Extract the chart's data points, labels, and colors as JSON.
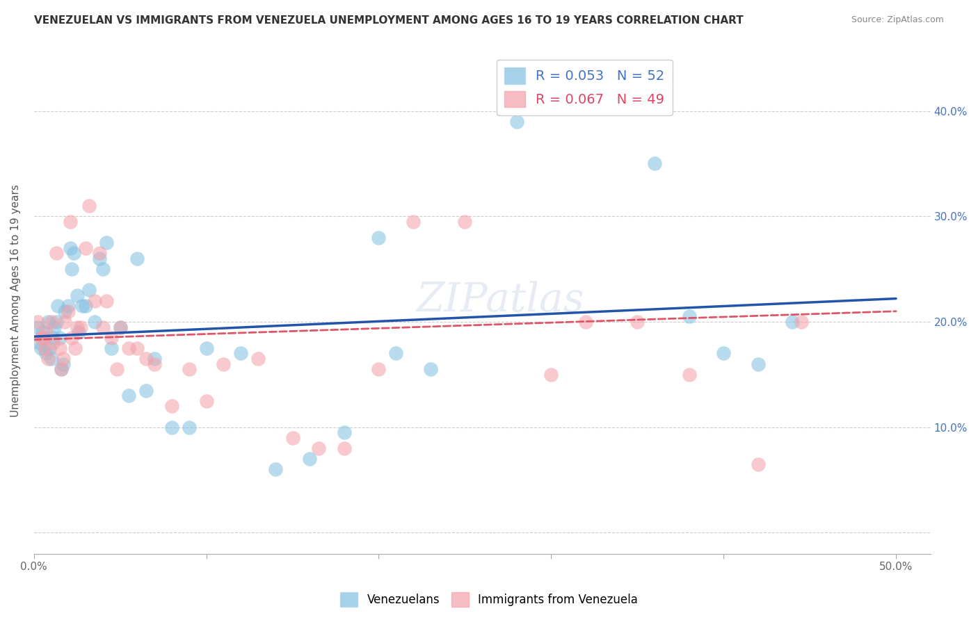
{
  "title": "VENEZUELAN VS IMMIGRANTS FROM VENEZUELA UNEMPLOYMENT AMONG AGES 16 TO 19 YEARS CORRELATION CHART",
  "source": "Source: ZipAtlas.com",
  "ylabel": "Unemployment Among Ages 16 to 19 years",
  "xlim": [
    0.0,
    0.52
  ],
  "ylim": [
    -0.02,
    0.46
  ],
  "yticks": [
    0.0,
    0.1,
    0.2,
    0.3,
    0.4
  ],
  "xtick_positions": [
    0.0,
    0.1,
    0.2,
    0.3,
    0.4,
    0.5
  ],
  "legend_label1": "Venezuelans",
  "legend_label2": "Immigrants from Venezuela",
  "R1": 0.053,
  "N1": 52,
  "R2": 0.067,
  "N2": 49,
  "blue_color": "#7fbfdf",
  "pink_color": "#f4a0a8",
  "line_blue": "#2255aa",
  "line_pink": "#dd5566",
  "watermark": "ZIPatlas",
  "blue_x": [
    0.002,
    0.003,
    0.004,
    0.005,
    0.006,
    0.007,
    0.008,
    0.009,
    0.01,
    0.011,
    0.012,
    0.013,
    0.014,
    0.015,
    0.016,
    0.017,
    0.018,
    0.02,
    0.021,
    0.022,
    0.023,
    0.025,
    0.026,
    0.028,
    0.03,
    0.032,
    0.035,
    0.038,
    0.04,
    0.042,
    0.045,
    0.05,
    0.055,
    0.06,
    0.065,
    0.07,
    0.08,
    0.09,
    0.1,
    0.12,
    0.14,
    0.16,
    0.18,
    0.2,
    0.21,
    0.23,
    0.28,
    0.36,
    0.38,
    0.4,
    0.42,
    0.44
  ],
  "blue_y": [
    0.195,
    0.18,
    0.175,
    0.19,
    0.185,
    0.17,
    0.2,
    0.175,
    0.165,
    0.185,
    0.195,
    0.2,
    0.215,
    0.185,
    0.155,
    0.16,
    0.21,
    0.215,
    0.27,
    0.25,
    0.265,
    0.225,
    0.19,
    0.215,
    0.215,
    0.23,
    0.2,
    0.26,
    0.25,
    0.275,
    0.175,
    0.195,
    0.13,
    0.26,
    0.135,
    0.165,
    0.1,
    0.1,
    0.175,
    0.17,
    0.06,
    0.07,
    0.095,
    0.28,
    0.17,
    0.155,
    0.39,
    0.35,
    0.205,
    0.17,
    0.16,
    0.2
  ],
  "pink_x": [
    0.002,
    0.004,
    0.005,
    0.006,
    0.007,
    0.008,
    0.01,
    0.011,
    0.013,
    0.015,
    0.016,
    0.017,
    0.018,
    0.02,
    0.021,
    0.022,
    0.024,
    0.025,
    0.027,
    0.03,
    0.032,
    0.035,
    0.038,
    0.04,
    0.042,
    0.045,
    0.048,
    0.05,
    0.055,
    0.06,
    0.065,
    0.07,
    0.08,
    0.09,
    0.1,
    0.11,
    0.13,
    0.15,
    0.165,
    0.18,
    0.2,
    0.22,
    0.25,
    0.3,
    0.32,
    0.35,
    0.38,
    0.42,
    0.445
  ],
  "pink_y": [
    0.2,
    0.185,
    0.185,
    0.175,
    0.19,
    0.165,
    0.2,
    0.18,
    0.265,
    0.175,
    0.155,
    0.165,
    0.2,
    0.21,
    0.295,
    0.185,
    0.175,
    0.195,
    0.195,
    0.27,
    0.31,
    0.22,
    0.265,
    0.195,
    0.22,
    0.185,
    0.155,
    0.195,
    0.175,
    0.175,
    0.165,
    0.16,
    0.12,
    0.155,
    0.125,
    0.16,
    0.165,
    0.09,
    0.08,
    0.08,
    0.155,
    0.295,
    0.295,
    0.15,
    0.2,
    0.2,
    0.15,
    0.065,
    0.2
  ],
  "line1_x0": 0.0,
  "line1_y0": 0.186,
  "line1_x1": 0.5,
  "line1_y1": 0.222,
  "line2_x0": 0.0,
  "line2_y0": 0.183,
  "line2_x1": 0.5,
  "line2_y1": 0.21
}
